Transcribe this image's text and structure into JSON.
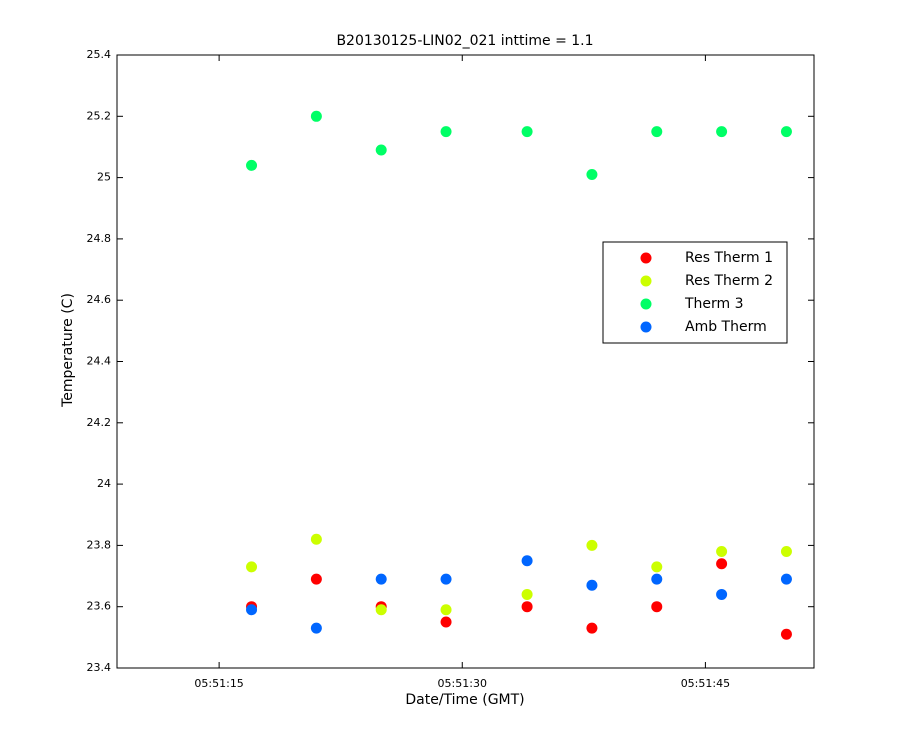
{
  "chart_data": {
    "type": "scatter",
    "title": "B20130125-LIN02_021 inttime = 1.1",
    "xlabel": "Date/Time (GMT)",
    "ylabel": "Temperature (C)",
    "x": [
      "05:51:17",
      "05:51:21",
      "05:51:25",
      "05:51:29",
      "05:51:34",
      "05:51:38",
      "05:51:42",
      "05:51:46",
      "05:51:50"
    ],
    "series": [
      {
        "name": "Res Therm 1",
        "color": "#ff0000",
        "values": [
          23.6,
          23.69,
          23.6,
          23.55,
          23.6,
          23.53,
          23.6,
          23.74,
          23.51
        ]
      },
      {
        "name": "Res Therm 2",
        "color": "#ccff00",
        "values": [
          23.73,
          23.82,
          23.59,
          23.59,
          23.64,
          23.8,
          23.73,
          23.78,
          23.78
        ]
      },
      {
        "name": "Therm 3",
        "color": "#00ff66",
        "values": [
          25.04,
          25.2,
          25.09,
          25.15,
          25.15,
          25.01,
          25.15,
          25.15,
          25.15
        ]
      },
      {
        "name": "Amb Therm",
        "color": "#0066ff",
        "values": [
          23.59,
          23.53,
          23.69,
          23.69,
          23.75,
          23.67,
          23.69,
          23.64,
          23.69
        ]
      }
    ],
    "xlim": [
      "05:51:08.7",
      "05:51:51.7"
    ],
    "xticks": [
      "05:51:15",
      "05:51:30",
      "05:51:45"
    ],
    "ylim": [
      23.4,
      25.4
    ],
    "yticks": [
      23.4,
      23.6,
      23.8,
      24,
      24.2,
      24.4,
      24.6,
      24.8,
      25,
      25.2,
      25.4
    ],
    "legend": "right"
  }
}
